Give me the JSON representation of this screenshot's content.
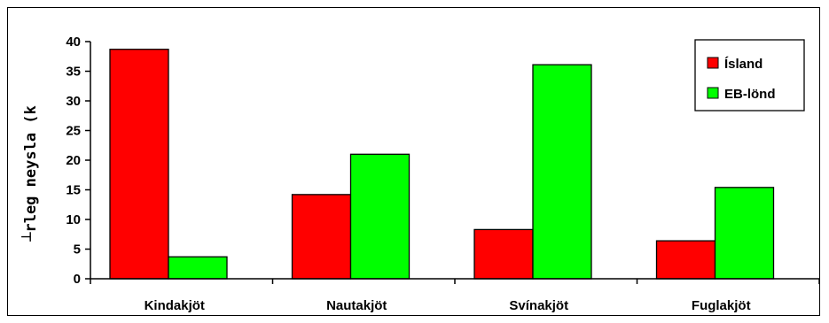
{
  "chart_data": {
    "type": "bar",
    "categories": [
      "Kindakjöt",
      "Nautakjöt",
      "Svínakjöt",
      "Fuglakjöt"
    ],
    "series": [
      {
        "name": "Ísland",
        "color": "#ff0000",
        "values": [
          38.7,
          14.2,
          8.3,
          6.4
        ]
      },
      {
        "name": "EB-lönd",
        "color": "#00ff00",
        "values": [
          3.7,
          21.0,
          36.1,
          15.4
        ]
      }
    ],
    "ylabel": "┴rleg neysla (k",
    "ylim": [
      0,
      40
    ],
    "yticks": [
      0,
      5,
      10,
      15,
      20,
      25,
      30,
      35,
      40
    ],
    "grid": false,
    "legend_position": "top-right"
  }
}
